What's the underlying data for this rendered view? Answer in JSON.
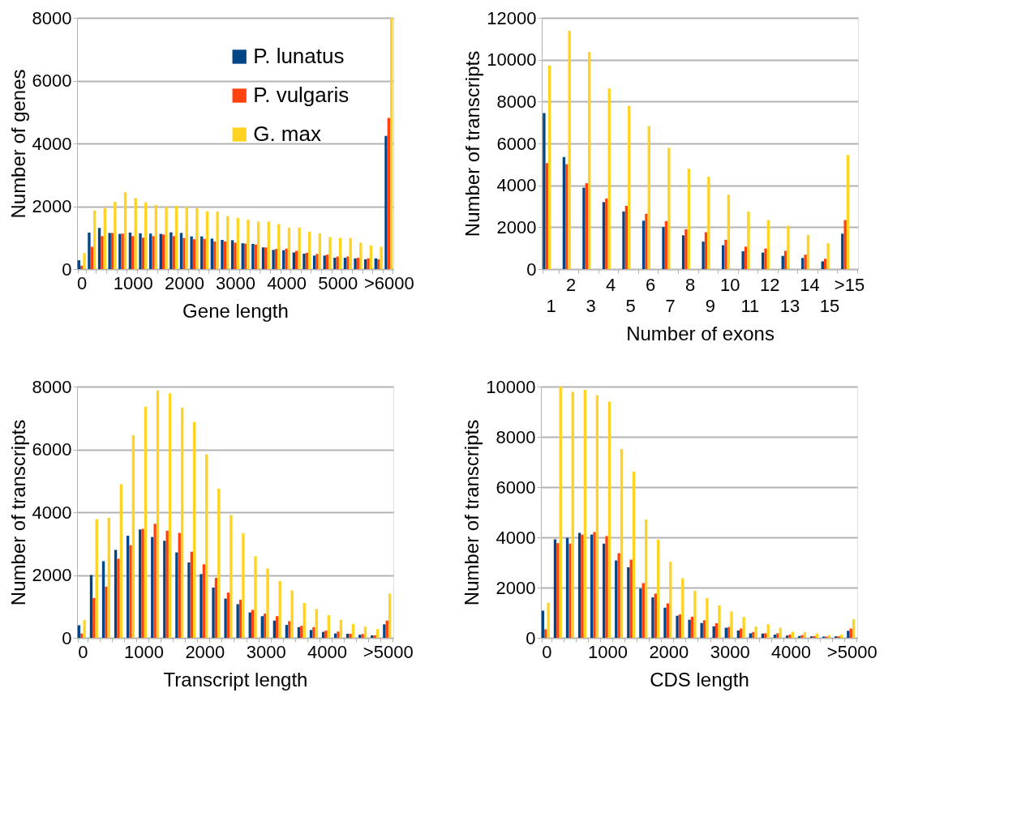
{
  "chart_data": [
    {
      "type": "bar",
      "xlabel": "Gene length",
      "ylabel": "Number of genes",
      "ylim": [
        0,
        8000
      ],
      "yticks": [
        0,
        2000,
        4000,
        6000,
        8000
      ],
      "grid": "y",
      "legend": "top",
      "categories": [
        "0",
        null,
        null,
        null,
        null,
        "1000",
        null,
        null,
        null,
        null,
        "2000",
        null,
        null,
        null,
        null,
        "3000",
        null,
        null,
        null,
        null,
        "4000",
        null,
        null,
        null,
        null,
        "5000",
        null,
        null,
        null,
        null,
        ">6000"
      ],
      "series": [
        {
          "name": "P. lunatus",
          "color": "#004586",
          "values": [
            280,
            1160,
            1310,
            1150,
            1120,
            1160,
            1140,
            1130,
            1120,
            1170,
            1150,
            1040,
            1040,
            970,
            930,
            920,
            820,
            800,
            690,
            610,
            600,
            530,
            490,
            430,
            430,
            360,
            360,
            340,
            310,
            340,
            4240
          ]
        },
        {
          "name": "P. vulgaris",
          "color": "#ff420e",
          "values": [
            110,
            710,
            1050,
            1150,
            1130,
            1050,
            1000,
            1050,
            1100,
            1050,
            990,
            950,
            960,
            880,
            880,
            840,
            810,
            780,
            690,
            640,
            650,
            580,
            520,
            480,
            460,
            400,
            400,
            360,
            340,
            310,
            4810
          ]
        },
        {
          "name": "G. max",
          "color": "#ffd320",
          "values": [
            510,
            1870,
            1940,
            2140,
            2450,
            2260,
            2120,
            2040,
            1980,
            2010,
            1980,
            1940,
            1840,
            1830,
            1690,
            1630,
            1570,
            1510,
            1510,
            1430,
            1320,
            1320,
            1190,
            1140,
            1020,
            990,
            990,
            840,
            750,
            710,
            8000
          ]
        }
      ]
    },
    {
      "type": "bar",
      "xlabel": "Number of exons",
      "ylabel": "Number of transcripts",
      "ylim": [
        0,
        12000
      ],
      "yticks": [
        0,
        2000,
        4000,
        6000,
        8000,
        10000,
        12000
      ],
      "grid": "y",
      "legend": false,
      "categories": [
        "1",
        "2",
        "3",
        "4",
        "5",
        "6",
        "7",
        "8",
        "9",
        "10",
        "11",
        "12",
        "13",
        "14",
        "15",
        ">15"
      ],
      "series": [
        {
          "color": "#004586",
          "values": [
            7450,
            5350,
            3890,
            3200,
            2750,
            2310,
            2010,
            1610,
            1310,
            1140,
            850,
            790,
            630,
            530,
            370,
            1690
          ]
        },
        {
          "color": "#ff420e",
          "values": [
            5060,
            5010,
            4100,
            3370,
            3020,
            2640,
            2290,
            1900,
            1760,
            1400,
            1070,
            980,
            870,
            690,
            490,
            2340
          ]
        },
        {
          "color": "#ffd320",
          "values": [
            9720,
            11380,
            10370,
            8630,
            7790,
            6830,
            5790,
            4790,
            4410,
            3550,
            2750,
            2340,
            2070,
            1630,
            1230,
            5450
          ]
        }
      ]
    },
    {
      "type": "bar",
      "xlabel": "Transcript length",
      "ylabel": "Number of transcripts",
      "ylim": [
        0,
        8000
      ],
      "yticks": [
        0,
        2000,
        4000,
        6000,
        8000
      ],
      "grid": "y",
      "legend": false,
      "categories": [
        "0",
        null,
        null,
        null,
        null,
        "1000",
        null,
        null,
        null,
        null,
        "2000",
        null,
        null,
        null,
        null,
        "3000",
        null,
        null,
        null,
        null,
        "4000",
        null,
        null,
        null,
        null,
        ">5000"
      ],
      "series": [
        {
          "color": "#004586",
          "values": [
            400,
            2000,
            2440,
            2800,
            3250,
            3450,
            3210,
            3090,
            2720,
            2400,
            2030,
            1600,
            1250,
            1070,
            810,
            690,
            550,
            410,
            340,
            250,
            190,
            140,
            130,
            100,
            80,
            430
          ]
        },
        {
          "color": "#ff420e",
          "values": [
            140,
            1270,
            1630,
            2520,
            2950,
            3470,
            3630,
            3410,
            3340,
            2740,
            2340,
            1910,
            1440,
            1210,
            890,
            770,
            690,
            530,
            380,
            340,
            230,
            200,
            130,
            120,
            80,
            550
          ]
        },
        {
          "color": "#ffd320",
          "values": [
            570,
            3780,
            3820,
            4890,
            6450,
            7360,
            7880,
            7790,
            7330,
            6870,
            5840,
            4750,
            3910,
            3330,
            2600,
            2210,
            1810,
            1510,
            1110,
            920,
            720,
            580,
            440,
            360,
            280,
            1410
          ]
        }
      ]
    },
    {
      "type": "bar",
      "xlabel": "CDS length",
      "ylabel": "Number of transcripts",
      "ylim": [
        0,
        10000
      ],
      "yticks": [
        0,
        2000,
        4000,
        6000,
        8000,
        10000
      ],
      "grid": "y",
      "legend": false,
      "categories": [
        "0",
        null,
        null,
        null,
        null,
        "1000",
        null,
        null,
        null,
        null,
        "2000",
        null,
        null,
        null,
        null,
        "3000",
        null,
        null,
        null,
        null,
        "4000",
        null,
        null,
        null,
        null,
        ">5000"
      ],
      "series": [
        {
          "color": "#004586",
          "values": [
            1080,
            3920,
            3980,
            4180,
            4110,
            3750,
            3080,
            2810,
            1960,
            1610,
            1200,
            880,
            720,
            590,
            460,
            400,
            290,
            180,
            170,
            130,
            90,
            70,
            60,
            50,
            60,
            280
          ]
        },
        {
          "color": "#ff420e",
          "values": [
            340,
            3770,
            3750,
            4110,
            4210,
            4050,
            3370,
            3110,
            2180,
            1760,
            1370,
            930,
            840,
            700,
            580,
            430,
            370,
            230,
            180,
            180,
            130,
            110,
            70,
            50,
            60,
            370
          ]
        },
        {
          "color": "#ffd320",
          "values": [
            1400,
            10000,
            9790,
            9870,
            9660,
            9400,
            7520,
            6610,
            4710,
            3910,
            3030,
            2370,
            1870,
            1580,
            1290,
            1050,
            830,
            450,
            540,
            400,
            240,
            230,
            170,
            110,
            130,
            740
          ]
        }
      ]
    }
  ]
}
